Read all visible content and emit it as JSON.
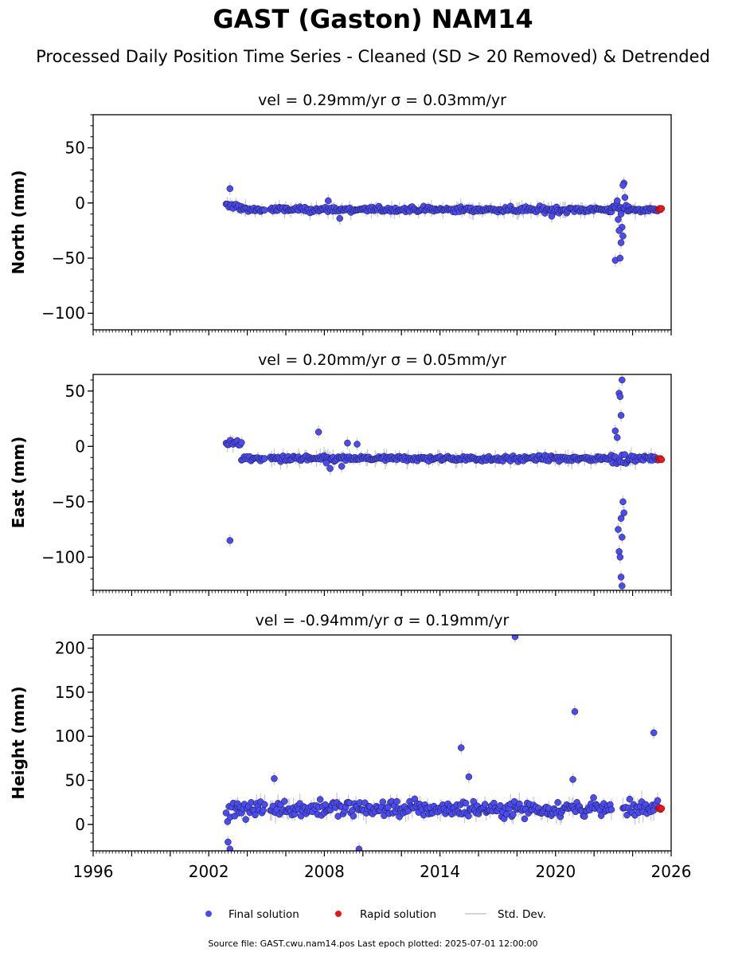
{
  "figure": {
    "title": "GAST (Gaston) NAM14",
    "subtitle": "Processed Daily Position Time Series - Cleaned (SD > 20 Removed) & Detrended",
    "footer": "Source file: GAST.cwu.nam14.pos  Last epoch plotted: 2025-07-01 12:00:00"
  },
  "legend": {
    "items": [
      {
        "label": "Final solution",
        "color": "#4b4bef"
      },
      {
        "label": "Rapid solution",
        "color": "#e31a1c"
      },
      {
        "label": "Std. Dev.",
        "color": "#c8c8c8"
      }
    ],
    "placement": "bottom-center"
  },
  "colors": {
    "final": "#4b4bef",
    "rapid": "#e31a1c",
    "stddev": "#c8c8c8",
    "edge": "#14143c"
  },
  "chart_data": [
    {
      "type": "scatter",
      "title": "vel = 0.29mm/yr   σ = 0.03mm/yr",
      "ylabel": "North (mm)",
      "xlim": [
        1996,
        2026
      ],
      "ylim": [
        -115,
        80
      ],
      "yticks": [
        50,
        0,
        -50,
        -100
      ],
      "ytick_labels": [
        "50",
        "0",
        "−50",
        "−100"
      ],
      "grid": false,
      "series": [
        {
          "name": "Final solution",
          "segments": [
            {
              "x": [
                2002.9,
                2003.7
              ],
              "level": -3,
              "spread": 4
            },
            {
              "x": [
                2003.7,
                2004.9
              ],
              "level": -6,
              "spread": 3
            },
            {
              "x": [
                2005.2,
                2022.9
              ],
              "level": -6,
              "spread": 2.5
            },
            {
              "x": [
                2022.9,
                2023.8
              ],
              "level": -6,
              "spread": 5
            },
            {
              "x": [
                2023.8,
                2025.3
              ],
              "level": -6,
              "spread": 2
            }
          ],
          "outliers": [
            [
              2003.1,
              13
            ],
            [
              2008.2,
              2
            ],
            [
              2008.8,
              -14
            ],
            [
              2019.8,
              -12
            ],
            [
              2023.1,
              -52
            ],
            [
              2023.35,
              -50
            ],
            [
              2023.4,
              -36
            ],
            [
              2023.5,
              -30
            ],
            [
              2023.45,
              -22
            ],
            [
              2023.3,
              -25
            ],
            [
              2023.55,
              18
            ],
            [
              2023.5,
              16
            ],
            [
              2023.6,
              5
            ],
            [
              2023.2,
              2
            ],
            [
              2023.4,
              -10
            ],
            [
              2023.25,
              -15
            ]
          ]
        },
        {
          "name": "Rapid solution",
          "x": [
            2025.35,
            2025.4,
            2025.45,
            2025.5
          ],
          "y": [
            -6,
            -5,
            -6,
            -5
          ]
        }
      ]
    },
    {
      "type": "scatter",
      "title": "vel = 0.20mm/yr   σ = 0.05mm/yr",
      "ylabel": "East (mm)",
      "xlim": [
        1996,
        2026
      ],
      "ylim": [
        -130,
        65
      ],
      "yticks": [
        50,
        0,
        -50,
        -100
      ],
      "ytick_labels": [
        "50",
        "0",
        "−50",
        "−100"
      ],
      "grid": false,
      "series": [
        {
          "name": "Final solution",
          "segments": [
            {
              "x": [
                2002.9,
                2003.7
              ],
              "level": 3,
              "spread": 3
            },
            {
              "x": [
                2003.7,
                2004.9
              ],
              "level": -11,
              "spread": 2
            },
            {
              "x": [
                2005.2,
                2022.9
              ],
              "level": -11,
              "spread": 2.5
            },
            {
              "x": [
                2022.9,
                2023.8
              ],
              "level": -10,
              "spread": 6
            },
            {
              "x": [
                2023.8,
                2025.3
              ],
              "level": -11,
              "spread": 2
            }
          ],
          "outliers": [
            [
              2003.1,
              -85
            ],
            [
              2007.7,
              13
            ],
            [
              2008.1,
              -15
            ],
            [
              2008.3,
              -20
            ],
            [
              2008.9,
              -18
            ],
            [
              2009.2,
              3
            ],
            [
              2009.7,
              2
            ],
            [
              2023.3,
              48
            ],
            [
              2023.45,
              60
            ],
            [
              2023.35,
              45
            ],
            [
              2023.4,
              28
            ],
            [
              2023.1,
              14
            ],
            [
              2023.2,
              8
            ],
            [
              2023.5,
              -50
            ],
            [
              2023.4,
              -65
            ],
            [
              2023.45,
              -82
            ],
            [
              2023.3,
              -95
            ],
            [
              2023.35,
              -100
            ],
            [
              2023.4,
              -118
            ],
            [
              2023.45,
              -126
            ],
            [
              2023.25,
              -75
            ],
            [
              2023.55,
              -60
            ]
          ]
        },
        {
          "name": "Rapid solution",
          "x": [
            2025.35,
            2025.4,
            2025.45,
            2025.5
          ],
          "y": [
            -11,
            -12,
            -11,
            -12
          ]
        }
      ]
    },
    {
      "type": "scatter",
      "title": "vel = -0.94mm/yr   σ = 0.19mm/yr",
      "ylabel": "Height (mm)",
      "xlim": [
        1996,
        2026
      ],
      "ylim": [
        -30,
        215
      ],
      "yticks": [
        200,
        150,
        100,
        50,
        0
      ],
      "ytick_labels": [
        "200",
        "150",
        "100",
        "50",
        "0"
      ],
      "xticks": [
        1996,
        2002,
        2008,
        2014,
        2020,
        2026
      ],
      "xtick_labels": [
        "1996",
        "2002",
        "2008",
        "2014",
        "2020",
        "2026"
      ],
      "grid": false,
      "series": [
        {
          "name": "Final solution",
          "segments": [
            {
              "x": [
                2002.9,
                2003.5
              ],
              "level": 12,
              "spread": 12
            },
            {
              "x": [
                2003.5,
                2004.9
              ],
              "level": 18,
              "spread": 10
            },
            {
              "x": [
                2005.2,
                2022.9
              ],
              "level": 18,
              "spread": 9
            },
            {
              "x": [
                2023.5,
                2025.3
              ],
              "level": 18,
              "spread": 8
            }
          ],
          "outliers": [
            [
              2003.0,
              -20
            ],
            [
              2003.1,
              -28
            ],
            [
              2005.4,
              52
            ],
            [
              2009.8,
              -28
            ],
            [
              2015.1,
              87
            ],
            [
              2015.5,
              54
            ],
            [
              2017.9,
              213
            ],
            [
              2021.0,
              128
            ],
            [
              2020.9,
              51
            ],
            [
              2025.1,
              104
            ]
          ]
        },
        {
          "name": "Rapid solution",
          "x": [
            2025.35,
            2025.4,
            2025.45,
            2025.5
          ],
          "y": [
            18,
            19,
            17,
            18
          ]
        }
      ]
    }
  ]
}
